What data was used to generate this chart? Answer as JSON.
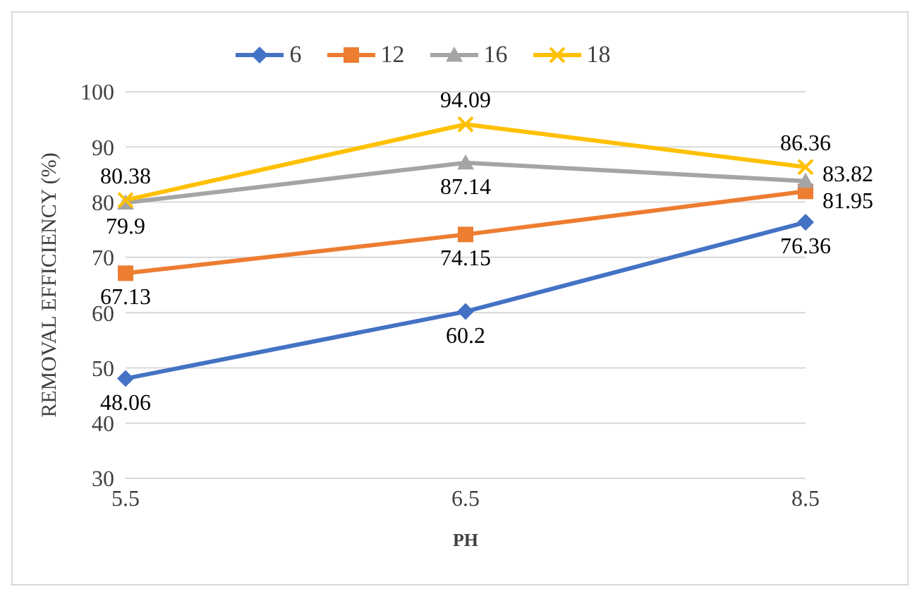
{
  "chart_data": {
    "type": "line",
    "xlabel": "PH",
    "ylabel": "REMOVAL EFFICIENCY (%)",
    "categories": [
      "5.5",
      "6.5",
      "8.5"
    ],
    "series": [
      {
        "name": "6",
        "color": "#4472c4",
        "marker": "diamond",
        "values": [
          48.06,
          60.2,
          76.36
        ]
      },
      {
        "name": "12",
        "color": "#ed7d31",
        "marker": "square",
        "values": [
          67.13,
          74.15,
          81.95
        ]
      },
      {
        "name": "16",
        "color": "#a5a5a5",
        "marker": "triangle",
        "values": [
          79.9,
          87.14,
          83.82
        ]
      },
      {
        "name": "18",
        "color": "#ffc000",
        "marker": "cross",
        "values": [
          80.38,
          94.09,
          86.36
        ]
      }
    ],
    "ylim": [
      30,
      100
    ],
    "yticks": [
      30,
      40,
      50,
      60,
      70,
      80,
      90,
      100
    ],
    "grid": "y",
    "legend": "top",
    "data_labels": true
  }
}
